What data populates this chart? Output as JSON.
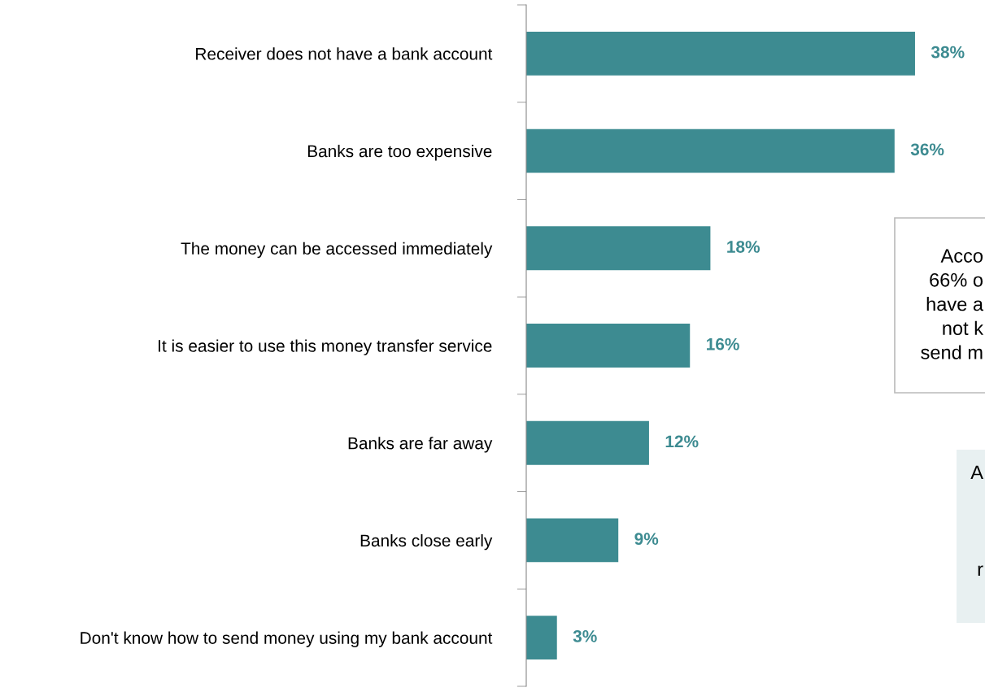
{
  "chart_data": {
    "type": "bar",
    "orientation": "horizontal",
    "categories": [
      "Receiver does not have a bank account",
      "Banks are too expensive",
      "The money can be accessed immediately",
      "It is easier to use this money transfer service",
      "Banks are far away",
      "Banks close early",
      "Don't know how to send money using my bank account"
    ],
    "values": [
      38,
      36,
      18,
      16,
      12,
      9,
      3
    ],
    "color": "#3d8b91",
    "value_labels": [
      "38%",
      "36%",
      "18%",
      "16%",
      "12%",
      "9%",
      "3%"
    ],
    "tick_labels": "y",
    "grid": false,
    "annotations": [
      "Acco\n66% o\nhave a\nnot k\nsend m",
      "A",
      "r"
    ]
  }
}
